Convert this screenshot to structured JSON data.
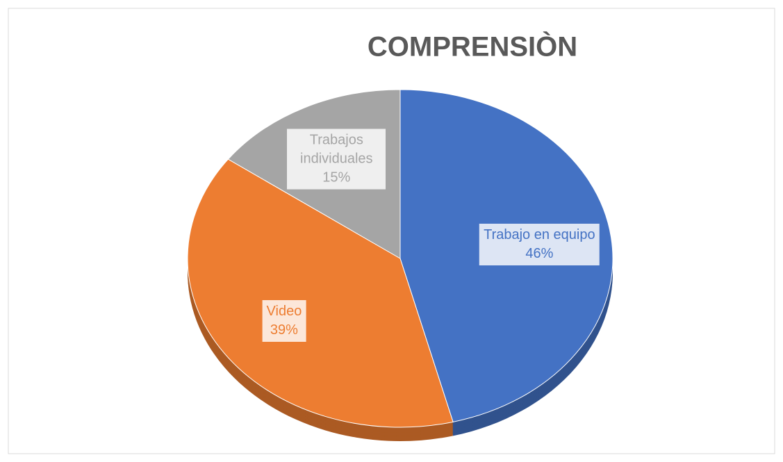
{
  "chart_data": {
    "type": "pie",
    "title": "COMPRENSIÒN",
    "categories": [
      "Trabajo en equipo",
      "Video",
      "Trabajos individuales"
    ],
    "values": [
      46,
      39,
      15
    ],
    "value_labels": [
      "46%",
      "39%",
      "15%"
    ],
    "colors": [
      "#4472c4",
      "#ed7d31",
      "#a5a5a5"
    ]
  }
}
